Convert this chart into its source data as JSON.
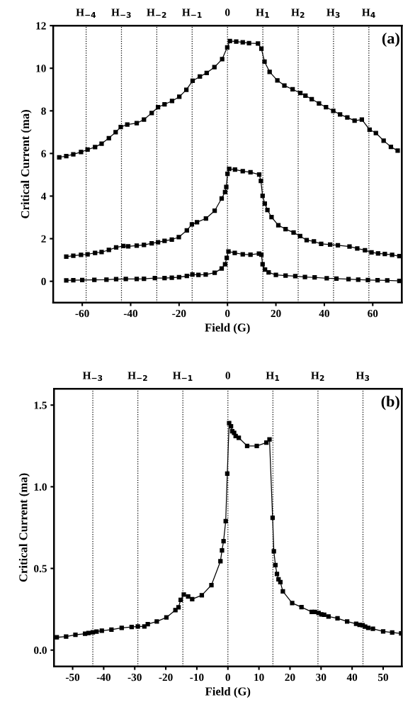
{
  "chart_data": [
    {
      "type": "line",
      "xlabel": "Field (G)",
      "ylabel": "Critical Current (ma)",
      "annotations": [
        "(a)"
      ],
      "marker": "square",
      "line_style": "solid",
      "grid": false,
      "legend": false,
      "xlim": [
        -72,
        72
      ],
      "xticks": [
        -60,
        -40,
        -20,
        0,
        20,
        40,
        60
      ],
      "ylim": [
        -1,
        12
      ],
      "yticks": [
        0,
        2,
        4,
        6,
        8,
        10,
        12
      ],
      "ref_lines": [
        {
          "axis": "x",
          "value": -58.4,
          "label": "H$_{−4}$",
          "line_style": "dotted",
          "color": "#000000"
        },
        {
          "axis": "x",
          "value": -43.8,
          "label": "H$_{−3}$",
          "line_style": "dotted",
          "color": "#000000"
        },
        {
          "axis": "x",
          "value": -29.2,
          "label": "H$_{−2}$",
          "line_style": "dotted",
          "color": "#000000"
        },
        {
          "axis": "x",
          "value": -14.6,
          "label": "H$_{−1}$",
          "line_style": "dotted",
          "color": "#000000"
        },
        {
          "axis": "x",
          "value": 0,
          "label": "0",
          "line_style": "dotted",
          "color": "#000000"
        },
        {
          "axis": "x",
          "value": 14.6,
          "label": "H$_{1}$",
          "line_style": "dotted",
          "color": "#000000"
        },
        {
          "axis": "x",
          "value": 29.2,
          "label": "H$_{2}$",
          "line_style": "dotted",
          "color": "#000000"
        },
        {
          "axis": "x",
          "value": 43.8,
          "label": "H$_{3}$",
          "line_style": "dotted",
          "color": "#000000"
        },
        {
          "axis": "x",
          "value": 58.4,
          "label": "H$_{4}$",
          "line_style": "dotted",
          "color": "#000000"
        }
      ],
      "series": [
        {
          "color": "#000000",
          "x": [
            -69.5,
            -66.6,
            -63.7,
            -60.5,
            -57.8,
            -54.7,
            -52,
            -49,
            -46.2,
            -44.1,
            -41.4,
            -37.5,
            -34.5,
            -31.3,
            -28.7,
            -26,
            -22.9,
            -19.9,
            -17,
            -14.4,
            -11.4,
            -8.6,
            -5.4,
            -2.2,
            -0.1,
            1.0,
            3.6,
            6.3,
            8.9,
            12.6,
            14,
            15.3,
            17.4,
            20.6,
            23.5,
            26.9,
            30.1,
            32.2,
            34.8,
            37.8,
            40.7,
            43.7,
            46.5,
            49.5,
            52.5,
            55.5,
            58.7,
            61.3,
            64.5,
            67.5,
            70.3
          ],
          "values": [
            5.82,
            5.88,
            5.96,
            6.07,
            6.18,
            6.3,
            6.46,
            6.72,
            7.0,
            7.24,
            7.36,
            7.42,
            7.59,
            7.9,
            8.17,
            8.31,
            8.46,
            8.66,
            8.99,
            9.41,
            9.61,
            9.78,
            10.05,
            10.43,
            10.98,
            11.28,
            11.25,
            11.22,
            11.18,
            11.16,
            10.92,
            10.31,
            9.83,
            9.43,
            9.19,
            9.01,
            8.84,
            8.71,
            8.55,
            8.35,
            8.17,
            8.0,
            7.83,
            7.69,
            7.54,
            7.59,
            7.12,
            6.96,
            6.6,
            6.31,
            6.13
          ]
        },
        {
          "color": "#000000",
          "x": [
            -66.6,
            -63.7,
            -60.5,
            -57.8,
            -54.7,
            -52,
            -49,
            -46,
            -43,
            -41,
            -37.5,
            -34.5,
            -31.3,
            -28.7,
            -26,
            -23,
            -20.1,
            -16.8,
            -14.7,
            -12.6,
            -8.9,
            -5.3,
            -2.4,
            -1.0,
            -0.5,
            0,
            0.7,
            3.1,
            6.3,
            9.5,
            13.1,
            13.8,
            14.5,
            15.4,
            16.5,
            18.2,
            21,
            24,
            27.3,
            30,
            32.7,
            35.7,
            38.7,
            42.4,
            45.6,
            50.4,
            53.6,
            56.8,
            59.5,
            62.2,
            65,
            68,
            71
          ],
          "values": [
            1.16,
            1.2,
            1.24,
            1.27,
            1.33,
            1.37,
            1.47,
            1.59,
            1.66,
            1.64,
            1.67,
            1.71,
            1.78,
            1.83,
            1.9,
            1.96,
            2.07,
            2.39,
            2.67,
            2.77,
            2.95,
            3.31,
            3.89,
            4.19,
            4.43,
            5.04,
            5.28,
            5.24,
            5.17,
            5.12,
            5.01,
            4.71,
            4.01,
            3.65,
            3.35,
            3.01,
            2.63,
            2.45,
            2.29,
            2.12,
            1.93,
            1.87,
            1.76,
            1.72,
            1.69,
            1.63,
            1.54,
            1.46,
            1.36,
            1.31,
            1.28,
            1.24,
            1.18
          ]
        },
        {
          "color": "#000000",
          "x": [
            -66.6,
            -63.7,
            -60,
            -55,
            -50,
            -46,
            -42,
            -37.5,
            -34.5,
            -30,
            -26,
            -23,
            -20,
            -16.8,
            -14.5,
            -12,
            -9,
            -5.3,
            -2.4,
            -1,
            -0.3,
            0.4,
            3,
            6.3,
            9.5,
            13,
            14,
            14.5,
            15.5,
            17,
            20,
            24,
            28,
            32,
            36,
            41,
            45,
            50,
            54,
            58,
            62,
            66,
            71
          ],
          "values": [
            0.04,
            0.05,
            0.06,
            0.07,
            0.08,
            0.1,
            0.11,
            0.11,
            0.12,
            0.15,
            0.15,
            0.17,
            0.19,
            0.25,
            0.32,
            0.3,
            0.32,
            0.4,
            0.6,
            0.8,
            1.1,
            1.4,
            1.33,
            1.27,
            1.25,
            1.3,
            1.25,
            0.8,
            0.55,
            0.42,
            0.3,
            0.27,
            0.24,
            0.2,
            0.18,
            0.14,
            0.13,
            0.1,
            0.08,
            0.06,
            0.05,
            0.04,
            0.02
          ]
        }
      ]
    },
    {
      "type": "line",
      "xlabel": "Field (G)",
      "ylabel": "Critical Current (ma)",
      "annotations": [
        "(b)"
      ],
      "marker": "square",
      "line_style": "solid",
      "grid": false,
      "legend": false,
      "xlim": [
        -56,
        56
      ],
      "xticks": [
        -50,
        -40,
        -30,
        -20,
        -10,
        0,
        10,
        20,
        30,
        40,
        50
      ],
      "ylim": [
        -0.1,
        1.6
      ],
      "yticks": [
        {
          "value": 0,
          "label": "0.0"
        },
        0.5,
        {
          "value": 1,
          "label": "1.0"
        },
        1.5
      ],
      "ref_lines": [
        {
          "axis": "x",
          "value": -43.5,
          "label": "H$_{−3}$",
          "line_style": "dotted",
          "color": "#000000"
        },
        {
          "axis": "x",
          "value": -29,
          "label": "H$_{−2}$",
          "line_style": "dotted",
          "color": "#000000"
        },
        {
          "axis": "x",
          "value": -14.5,
          "label": "H$_{−1}$",
          "line_style": "dotted",
          "color": "#000000"
        },
        {
          "axis": "x",
          "value": 0,
          "label": "0",
          "line_style": "dotted",
          "color": "#000000"
        },
        {
          "axis": "x",
          "value": 14.5,
          "label": "H$_{1}$",
          "line_style": "dotted",
          "color": "#000000"
        },
        {
          "axis": "x",
          "value": 29,
          "label": "H$_{2}$",
          "line_style": "dotted",
          "color": "#000000"
        },
        {
          "axis": "x",
          "value": 43.5,
          "label": "H$_{3}$",
          "line_style": "dotted",
          "color": "#000000"
        }
      ],
      "series": [
        {
          "color": "#000000",
          "x": [
            -55.1,
            -52.1,
            -49.1,
            -46,
            -44.9,
            -43.5,
            -42.3,
            -40.6,
            -37.5,
            -34.2,
            -31,
            -29,
            -26.9,
            -25.8,
            -22.9,
            -19.8,
            -16.9,
            -15.9,
            -15.2,
            -14.2,
            -12.8,
            -11.5,
            -8.4,
            -5.3,
            -2.4,
            -1.9,
            -1.4,
            -0.7,
            -0.2,
            0.4,
            1.0,
            1.4,
            2.0,
            2.5,
            3.5,
            6.2,
            9.3,
            12.4,
            13.4,
            14.4,
            14.8,
            15.3,
            15.8,
            16.3,
            16.9,
            17.7,
            20.7,
            23.7,
            27,
            28,
            29.2,
            30.1,
            31,
            32.4,
            35.3,
            38.4,
            41.3,
            42.4,
            43.4,
            44.2,
            45.2,
            46.7,
            50,
            52.9,
            55.8
          ],
          "values": [
            0.078,
            0.083,
            0.094,
            0.1,
            0.105,
            0.109,
            0.113,
            0.119,
            0.125,
            0.136,
            0.141,
            0.145,
            0.145,
            0.159,
            0.175,
            0.2,
            0.245,
            0.262,
            0.308,
            0.34,
            0.328,
            0.312,
            0.336,
            0.398,
            0.544,
            0.61,
            0.667,
            0.79,
            1.08,
            1.39,
            1.37,
            1.34,
            1.33,
            1.31,
            1.3,
            1.25,
            1.25,
            1.27,
            1.29,
            0.81,
            0.605,
            0.52,
            0.466,
            0.433,
            0.416,
            0.36,
            0.288,
            0.263,
            0.234,
            0.234,
            0.227,
            0.219,
            0.216,
            0.206,
            0.195,
            0.175,
            0.161,
            0.155,
            0.152,
            0.144,
            0.136,
            0.131,
            0.114,
            0.108,
            0.102
          ]
        }
      ]
    }
  ]
}
